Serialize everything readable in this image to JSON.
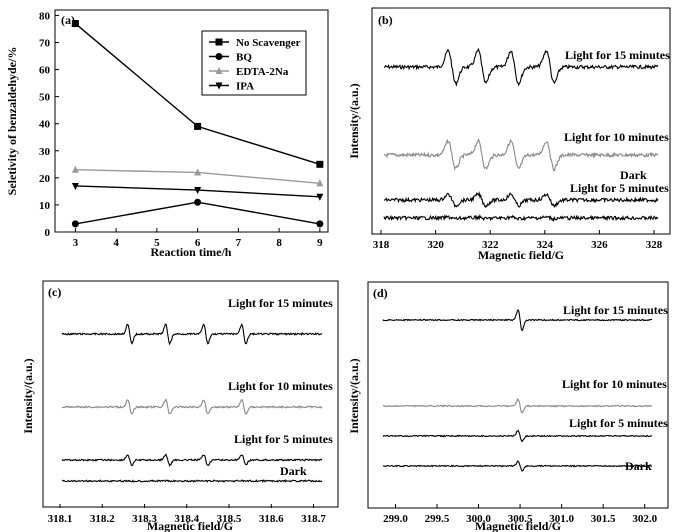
{
  "panels": {
    "a": {
      "tag": "(a)"
    },
    "b": {
      "tag": "(b)"
    },
    "c": {
      "tag": "(c)"
    },
    "d": {
      "tag": "(d)"
    }
  },
  "chart_data": [
    {
      "type": "line",
      "title": "",
      "xlabel": "Reaction time/h",
      "ylabel": "Seletivity of benzaldehyde/%",
      "xlim": [
        2.5,
        9.2
      ],
      "ylim": [
        0,
        82
      ],
      "xticks": [
        3,
        4,
        5,
        6,
        7,
        8,
        9
      ],
      "yticks": [
        0,
        10,
        20,
        30,
        40,
        50,
        60,
        70,
        80
      ],
      "x": [
        3,
        6,
        9
      ],
      "legend_position": "top-right",
      "series": [
        {
          "name": "No Scavenger",
          "marker": "square",
          "color": "#000000",
          "values": [
            77,
            39,
            25
          ]
        },
        {
          "name": "BQ",
          "marker": "circle",
          "color": "#000000",
          "values": [
            3,
            11,
            3
          ]
        },
        {
          "name": "EDTA-2Na",
          "marker": "triangle-up",
          "color": "#999999",
          "values": [
            23,
            22,
            18
          ]
        },
        {
          "name": "IPA",
          "marker": "triangle-down",
          "color": "#000000",
          "values": [
            17,
            15.5,
            13
          ]
        }
      ]
    },
    {
      "type": "line",
      "title": "",
      "xlabel": "Magnetic field/G",
      "ylabel": "Intensity/(a.u.)",
      "xlim": [
        318,
        328
      ],
      "xticks": [
        318,
        320,
        322,
        324,
        326,
        328
      ],
      "peaks": [
        320.6,
        321.7,
        322.9,
        324.2
      ],
      "series": [
        {
          "name": "Light for 15 minutes",
          "amplitude": 1.0,
          "color": "#000000"
        },
        {
          "name": "Light for 10 minutes",
          "amplitude": 0.85,
          "color": "#888888"
        },
        {
          "name": "Light for 5 minutes",
          "amplitude": 0.35,
          "color": "#000000"
        },
        {
          "name": "Dark",
          "amplitude": 0.05,
          "color": "#000000"
        }
      ]
    },
    {
      "type": "line",
      "title": "",
      "xlabel": "Magnetic field/G",
      "ylabel": "Intensity/(a.u.)",
      "xlim": [
        318.1,
        318.72
      ],
      "xticks": [
        318.1,
        318.2,
        318.3,
        318.4,
        318.5,
        318.6,
        318.7
      ],
      "peaks": [
        318.265,
        318.355,
        318.445,
        318.535
      ],
      "series": [
        {
          "name": "Light for 15 minutes",
          "amplitude": 1.0,
          "color": "#000000"
        },
        {
          "name": "Light for 10 minutes",
          "amplitude": 0.75,
          "color": "#888888"
        },
        {
          "name": "Light for 5 minutes",
          "amplitude": 0.55,
          "color": "#000000"
        },
        {
          "name": "Dark",
          "amplitude": 0.02,
          "color": "#000000"
        }
      ]
    },
    {
      "type": "line",
      "title": "",
      "xlabel": "Magnetic field/G",
      "ylabel": "Intensity/(a.u.)",
      "xlim": [
        298.85,
        302.1
      ],
      "xticks": [
        299.0,
        299.5,
        300.0,
        300.5,
        301.0,
        301.5,
        302.0
      ],
      "peaks": [
        300.5
      ],
      "series": [
        {
          "name": "Light for 15 minutes",
          "amplitude": 1.0,
          "color": "#000000"
        },
        {
          "name": "Light for 10 minutes",
          "amplitude": 0.65,
          "color": "#888888"
        },
        {
          "name": "Light for 5 minutes",
          "amplitude": 0.55,
          "color": "#000000"
        },
        {
          "name": "Dark",
          "amplitude": 0.45,
          "color": "#000000"
        }
      ]
    }
  ]
}
